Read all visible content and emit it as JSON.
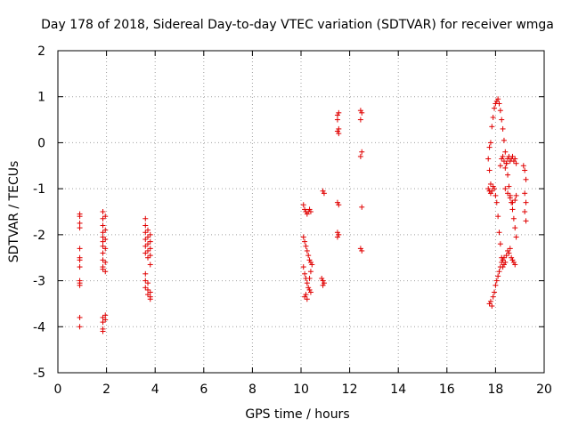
{
  "chart_data": {
    "type": "scatter",
    "title": "Day 178 of 2018, Sidereal Day-to-day VTEC variation (SDTVAR) for receiver wmga",
    "xlabel": "GPS time / hours",
    "ylabel": "SDTVAR / TECUs",
    "xlim": [
      0,
      20
    ],
    "ylim": [
      -5,
      2
    ],
    "xticks": [
      "0",
      "2",
      "4",
      "6",
      "8",
      "10",
      "12",
      "14",
      "16",
      "18",
      "20"
    ],
    "yticks": [
      "-5",
      "-4",
      "-3",
      "-2",
      "-1",
      "0",
      "1",
      "2"
    ],
    "grid": true,
    "marker": "plus",
    "color": "#e00000",
    "series": [
      {
        "name": "SDTVAR",
        "points": [
          [
            0.9,
            -1.55
          ],
          [
            0.9,
            -1.6
          ],
          [
            0.9,
            -1.75
          ],
          [
            0.9,
            -1.85
          ],
          [
            0.9,
            -2.3
          ],
          [
            0.9,
            -2.5
          ],
          [
            0.9,
            -2.55
          ],
          [
            0.9,
            -2.7
          ],
          [
            0.9,
            -3.0
          ],
          [
            0.9,
            -3.05
          ],
          [
            0.9,
            -3.1
          ],
          [
            0.9,
            -3.8
          ],
          [
            0.9,
            -4.0
          ],
          [
            1.85,
            -1.5
          ],
          [
            1.85,
            -1.65
          ],
          [
            1.85,
            -1.8
          ],
          [
            1.85,
            -1.95
          ],
          [
            1.85,
            -2.05
          ],
          [
            1.85,
            -2.15
          ],
          [
            1.85,
            -2.25
          ],
          [
            1.85,
            -2.4
          ],
          [
            1.85,
            -2.55
          ],
          [
            1.85,
            -2.7
          ],
          [
            1.85,
            -2.75
          ],
          [
            1.85,
            -3.8
          ],
          [
            1.85,
            -3.9
          ],
          [
            1.85,
            -4.05
          ],
          [
            1.85,
            -4.1
          ],
          [
            1.95,
            -1.6
          ],
          [
            1.95,
            -1.9
          ],
          [
            1.95,
            -2.1
          ],
          [
            1.95,
            -2.3
          ],
          [
            1.95,
            -2.6
          ],
          [
            1.95,
            -2.8
          ],
          [
            1.95,
            -3.75
          ],
          [
            1.95,
            -3.85
          ],
          [
            3.6,
            -1.65
          ],
          [
            3.6,
            -1.8
          ],
          [
            3.6,
            -1.95
          ],
          [
            3.6,
            -2.1
          ],
          [
            3.6,
            -2.25
          ],
          [
            3.6,
            -2.4
          ],
          [
            3.6,
            -2.85
          ],
          [
            3.6,
            -3.0
          ],
          [
            3.6,
            -3.15
          ],
          [
            3.7,
            -1.9
          ],
          [
            3.7,
            -2.05
          ],
          [
            3.7,
            -2.2
          ],
          [
            3.7,
            -2.35
          ],
          [
            3.7,
            -2.5
          ],
          [
            3.7,
            -3.05
          ],
          [
            3.7,
            -3.2
          ],
          [
            3.7,
            -3.3
          ],
          [
            3.8,
            -2.0
          ],
          [
            3.8,
            -2.15
          ],
          [
            3.8,
            -2.3
          ],
          [
            3.8,
            -2.45
          ],
          [
            3.8,
            -2.65
          ],
          [
            3.8,
            -3.25
          ],
          [
            3.8,
            -3.35
          ],
          [
            3.8,
            -3.4
          ],
          [
            10.1,
            -1.35
          ],
          [
            10.15,
            -1.45
          ],
          [
            10.2,
            -1.5
          ],
          [
            10.25,
            -1.55
          ],
          [
            10.3,
            -1.5
          ],
          [
            10.35,
            -1.45
          ],
          [
            10.4,
            -1.5
          ],
          [
            10.1,
            -2.05
          ],
          [
            10.15,
            -2.15
          ],
          [
            10.2,
            -2.25
          ],
          [
            10.25,
            -2.35
          ],
          [
            10.3,
            -2.45
          ],
          [
            10.35,
            -2.55
          ],
          [
            10.4,
            -2.6
          ],
          [
            10.1,
            -2.7
          ],
          [
            10.15,
            -2.85
          ],
          [
            10.2,
            -2.95
          ],
          [
            10.25,
            -3.05
          ],
          [
            10.3,
            -3.15
          ],
          [
            10.35,
            -3.2
          ],
          [
            10.4,
            -3.25
          ],
          [
            10.15,
            -3.35
          ],
          [
            10.2,
            -3.3
          ],
          [
            10.25,
            -3.4
          ],
          [
            10.35,
            -2.95
          ],
          [
            10.4,
            -2.8
          ],
          [
            10.45,
            -2.65
          ],
          [
            10.9,
            -1.05
          ],
          [
            10.95,
            -1.1
          ],
          [
            10.85,
            -2.95
          ],
          [
            10.9,
            -3.0
          ],
          [
            10.95,
            -3.05
          ],
          [
            10.9,
            -3.1
          ],
          [
            11.5,
            0.6
          ],
          [
            11.55,
            0.65
          ],
          [
            11.5,
            0.5
          ],
          [
            11.55,
            0.3
          ],
          [
            11.5,
            0.25
          ],
          [
            11.55,
            0.2
          ],
          [
            11.5,
            -1.3
          ],
          [
            11.55,
            -1.35
          ],
          [
            11.5,
            -1.95
          ],
          [
            11.55,
            -2.0
          ],
          [
            11.5,
            -2.05
          ],
          [
            12.45,
            0.7
          ],
          [
            12.5,
            0.65
          ],
          [
            12.45,
            0.5
          ],
          [
            12.5,
            -0.2
          ],
          [
            12.45,
            -0.3
          ],
          [
            12.5,
            -1.4
          ],
          [
            12.45,
            -2.3
          ],
          [
            12.5,
            -2.35
          ],
          [
            17.75,
            -3.5
          ],
          [
            17.8,
            -3.45
          ],
          [
            17.85,
            -3.55
          ],
          [
            17.9,
            -3.35
          ],
          [
            17.95,
            -3.25
          ],
          [
            18.0,
            -3.1
          ],
          [
            18.05,
            -3.0
          ],
          [
            18.1,
            -2.9
          ],
          [
            18.15,
            -2.8
          ],
          [
            18.2,
            -2.7
          ],
          [
            18.25,
            -2.6
          ],
          [
            18.3,
            -2.55
          ],
          [
            18.35,
            -2.5
          ],
          [
            18.4,
            -2.6
          ],
          [
            18.45,
            -2.45
          ],
          [
            18.5,
            -2.35
          ],
          [
            18.55,
            -2.4
          ],
          [
            18.6,
            -2.3
          ],
          [
            18.65,
            -2.5
          ],
          [
            18.7,
            -2.55
          ],
          [
            18.75,
            -2.6
          ],
          [
            18.8,
            -2.65
          ],
          [
            17.7,
            -0.35
          ],
          [
            17.75,
            -0.1
          ],
          [
            17.8,
            0.0
          ],
          [
            17.75,
            -0.6
          ],
          [
            17.8,
            -0.9
          ],
          [
            17.85,
            0.35
          ],
          [
            17.9,
            0.55
          ],
          [
            17.95,
            0.75
          ],
          [
            18.0,
            0.85
          ],
          [
            18.05,
            0.9
          ],
          [
            18.1,
            0.95
          ],
          [
            18.15,
            0.85
          ],
          [
            18.2,
            0.7
          ],
          [
            18.25,
            0.5
          ],
          [
            18.3,
            0.3
          ],
          [
            18.35,
            0.05
          ],
          [
            18.4,
            -0.2
          ],
          [
            18.45,
            -0.45
          ],
          [
            18.5,
            -0.7
          ],
          [
            18.55,
            -0.95
          ],
          [
            18.6,
            -1.15
          ],
          [
            18.65,
            -1.3
          ],
          [
            18.7,
            -1.45
          ],
          [
            18.75,
            -1.65
          ],
          [
            18.8,
            -1.85
          ],
          [
            18.85,
            -2.05
          ],
          [
            17.7,
            -1.0
          ],
          [
            17.75,
            -1.05
          ],
          [
            17.8,
            -1.1
          ],
          [
            17.85,
            -1.05
          ],
          [
            17.9,
            -0.95
          ],
          [
            17.95,
            -1.0
          ],
          [
            18.0,
            -1.15
          ],
          [
            18.05,
            -1.3
          ],
          [
            18.1,
            -1.6
          ],
          [
            18.15,
            -1.95
          ],
          [
            18.2,
            -2.2
          ],
          [
            18.25,
            -2.5
          ],
          [
            18.3,
            -2.7
          ],
          [
            18.35,
            -2.65
          ],
          [
            18.2,
            -0.5
          ],
          [
            18.25,
            -0.35
          ],
          [
            18.3,
            -0.3
          ],
          [
            18.35,
            -0.4
          ],
          [
            18.4,
            -0.55
          ],
          [
            18.45,
            -0.45
          ],
          [
            18.5,
            -0.35
          ],
          [
            18.55,
            -0.3
          ],
          [
            18.6,
            -0.4
          ],
          [
            18.65,
            -0.35
          ],
          [
            18.7,
            -0.3
          ],
          [
            18.75,
            -0.4
          ],
          [
            18.8,
            -0.35
          ],
          [
            18.85,
            -0.45
          ],
          [
            18.4,
            -1.0
          ],
          [
            18.5,
            -1.1
          ],
          [
            18.6,
            -1.2
          ],
          [
            18.7,
            -1.3
          ],
          [
            18.8,
            -1.25
          ],
          [
            18.85,
            -1.15
          ],
          [
            19.15,
            -0.5
          ],
          [
            19.2,
            -0.6
          ],
          [
            19.25,
            -0.8
          ],
          [
            19.2,
            -1.1
          ],
          [
            19.25,
            -1.3
          ],
          [
            19.2,
            -1.5
          ],
          [
            19.25,
            -1.7
          ]
        ]
      }
    ]
  }
}
